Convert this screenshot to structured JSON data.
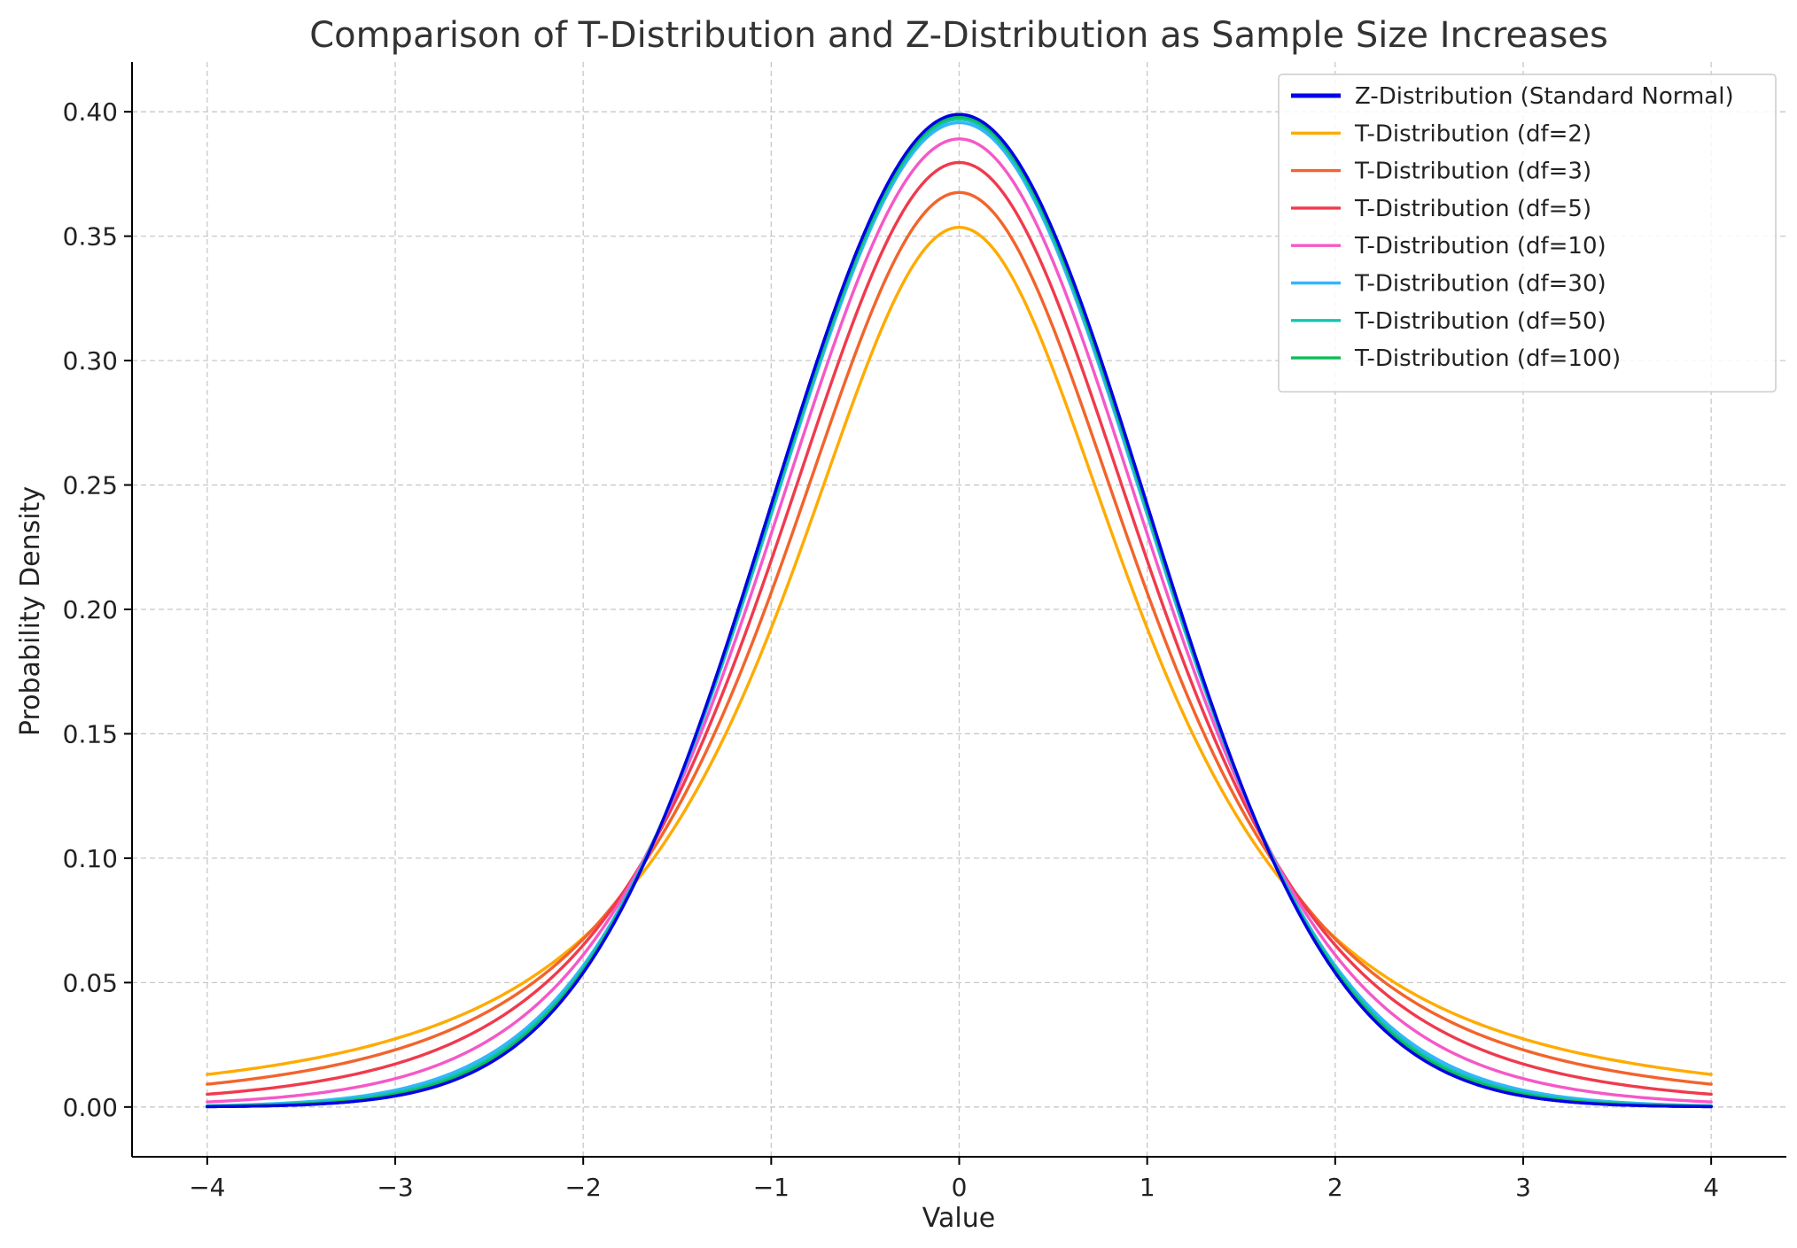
{
  "chart_data": {
    "type": "line",
    "title": "Comparison of T-Distribution and Z-Distribution as Sample Size Increases",
    "xlabel": "Value",
    "ylabel": "Probability Density",
    "xlim": [
      -4.4,
      4.4
    ],
    "ylim": [
      -0.02,
      0.42
    ],
    "x_domain": [
      -4,
      4
    ],
    "x_ticks": [
      -4,
      -3,
      -2,
      -1,
      0,
      1,
      2,
      3,
      4
    ],
    "x_tick_labels": [
      "−4",
      "−3",
      "−2",
      "−1",
      "0",
      "1",
      "2",
      "3",
      "4"
    ],
    "y_ticks": [
      0,
      0.05,
      0.1,
      0.15,
      0.2,
      0.25,
      0.3,
      0.35,
      0.4
    ],
    "y_tick_labels": [
      "0.00",
      "0.05",
      "0.10",
      "0.15",
      "0.20",
      "0.25",
      "0.30",
      "0.35",
      "0.40"
    ],
    "grid": true,
    "legend_position": "top-right",
    "series": [
      {
        "name": "Z-Distribution (Standard Normal)",
        "kind": "normal",
        "color": "#0000e6",
        "bold": true
      },
      {
        "name": "T-Distribution (df=2)",
        "kind": "t",
        "df": 2,
        "color": "#ffab00"
      },
      {
        "name": "T-Distribution (df=3)",
        "kind": "t",
        "df": 3,
        "color": "#f2642c"
      },
      {
        "name": "T-Distribution (df=5)",
        "kind": "t",
        "df": 5,
        "color": "#f03a4d"
      },
      {
        "name": "T-Distribution (df=10)",
        "kind": "t",
        "df": 10,
        "color": "#f558c8"
      },
      {
        "name": "T-Distribution (df=30)",
        "kind": "t",
        "df": 30,
        "color": "#33b5ff"
      },
      {
        "name": "T-Distribution (df=50)",
        "kind": "t",
        "df": 50,
        "color": "#14c4b4"
      },
      {
        "name": "T-Distribution (df=100)",
        "kind": "t",
        "df": 100,
        "color": "#0dbd58"
      }
    ]
  }
}
